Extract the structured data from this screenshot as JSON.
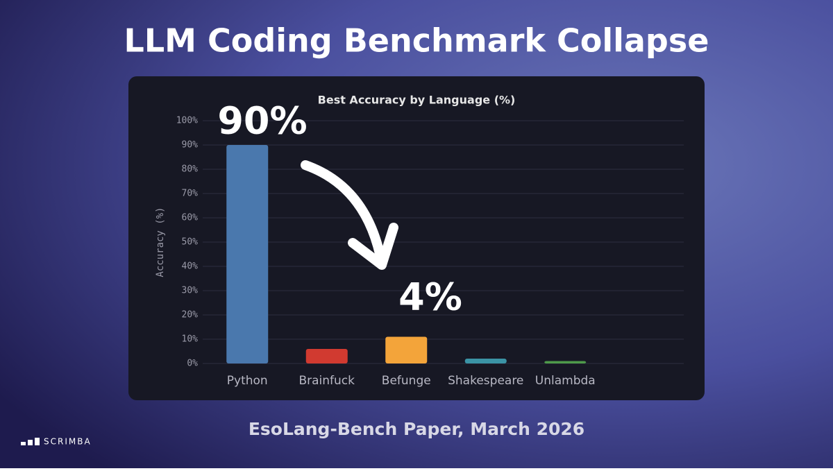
{
  "header": {
    "title": "LLM Coding Benchmark Collapse"
  },
  "footer": {
    "caption": "EsoLang-Bench Paper, March 2026",
    "brand": "SCRIMBA"
  },
  "chart_data": {
    "type": "bar",
    "title": "Best Accuracy by Language (%)",
    "y_label": "Accuracy (%)",
    "categories": [
      "Python",
      "Brainfuck",
      "Befunge",
      "Shakespeare",
      "Unlambda"
    ],
    "values": [
      90,
      6,
      11,
      2,
      1
    ],
    "colors": [
      "#4a78ad",
      "#d13a30",
      "#f3a43a",
      "#3b93a5",
      "#4e9a4a"
    ],
    "ylim": [
      0,
      100
    ],
    "yticks": [
      {
        "value": 0,
        "label": "0%"
      },
      {
        "value": 10,
        "label": "10%"
      },
      {
        "value": 20,
        "label": "20%"
      },
      {
        "value": 30,
        "label": "30%"
      },
      {
        "value": 40,
        "label": "40%"
      },
      {
        "value": 50,
        "label": "50%"
      },
      {
        "value": 60,
        "label": "60%"
      },
      {
        "value": 70,
        "label": "70%"
      },
      {
        "value": 80,
        "label": "80%"
      },
      {
        "value": 90,
        "label": "90%"
      },
      {
        "value": 100,
        "label": "100%"
      }
    ],
    "grid": true,
    "annotations": [
      "90%",
      "4%"
    ]
  }
}
